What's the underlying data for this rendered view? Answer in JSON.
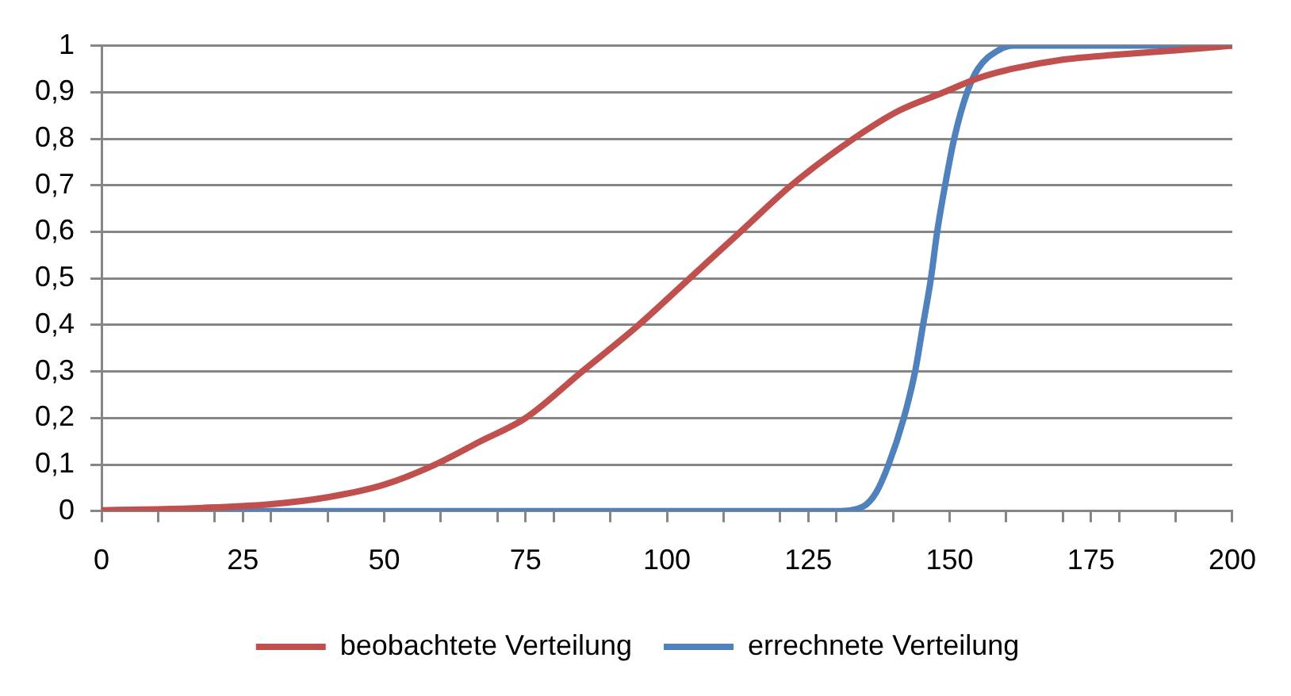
{
  "chart_data": {
    "type": "line",
    "xlim": [
      0,
      200
    ],
    "ylim": [
      0,
      1
    ],
    "xticks": [
      0,
      {
        "value": 10,
        "label": null
      },
      {
        "value": 20,
        "label": null
      },
      25,
      {
        "value": 30,
        "label": null
      },
      {
        "value": 40,
        "label": null
      },
      50,
      {
        "value": 60,
        "label": null
      },
      {
        "value": 70,
        "label": null
      },
      75,
      {
        "value": 80,
        "label": null
      },
      {
        "value": 90,
        "label": null
      },
      100,
      {
        "value": 110,
        "label": null
      },
      {
        "value": 120,
        "label": null
      },
      125,
      {
        "value": 130,
        "label": null
      },
      {
        "value": 140,
        "label": null
      },
      150,
      {
        "value": 160,
        "label": null
      },
      {
        "value": 170,
        "label": null
      },
      175,
      {
        "value": 180,
        "label": null
      },
      {
        "value": 190,
        "label": null
      },
      200
    ],
    "yticks": [
      0,
      {
        "value": 0.1,
        "label": "0,1"
      },
      {
        "value": 0.2,
        "label": "0,2"
      },
      {
        "value": 0.3,
        "label": "0,3"
      },
      {
        "value": 0.4,
        "label": "0,4"
      },
      {
        "value": 0.5,
        "label": "0,5"
      },
      {
        "value": 0.6,
        "label": "0,6"
      },
      {
        "value": 0.7,
        "label": "0,7"
      },
      {
        "value": 0.8,
        "label": "0,8"
      },
      {
        "value": 0.9,
        "label": "0,9"
      },
      1
    ],
    "grid": "y",
    "legend": "bottom",
    "marker": "none",
    "line_style": "solid",
    "series": [
      {
        "name": "beobachtete Verteilung",
        "color": "#c0504d",
        "x": [
          0,
          10,
          20,
          30,
          40,
          50,
          59,
          67,
          75,
          85,
          95,
          104,
          113,
          122,
          133,
          141,
          149,
          155,
          161,
          170,
          179,
          190,
          200
        ],
        "values": [
          0.002,
          0.004,
          0.008,
          0.015,
          0.03,
          0.057,
          0.1,
          0.15,
          0.2,
          0.3,
          0.4,
          0.5,
          0.6,
          0.7,
          0.8,
          0.86,
          0.9,
          0.93,
          0.95,
          0.97,
          0.98,
          0.99,
          1
        ]
      },
      {
        "name": "errechnete Verteilung",
        "color": "#4f81bd",
        "x": [
          0,
          130,
          134.7,
          137,
          139.2,
          141.9,
          143.9,
          145.3,
          146.7,
          147.8,
          149.2,
          150.8,
          153.1,
          155,
          158.6,
          161.4,
          170,
          200
        ],
        "values": [
          0,
          0,
          0.01,
          0.04,
          0.1,
          0.2,
          0.3,
          0.4,
          0.5,
          0.6,
          0.7,
          0.8,
          0.9,
          0.95,
          0.99,
          1,
          1,
          1
        ]
      }
    ]
  }
}
